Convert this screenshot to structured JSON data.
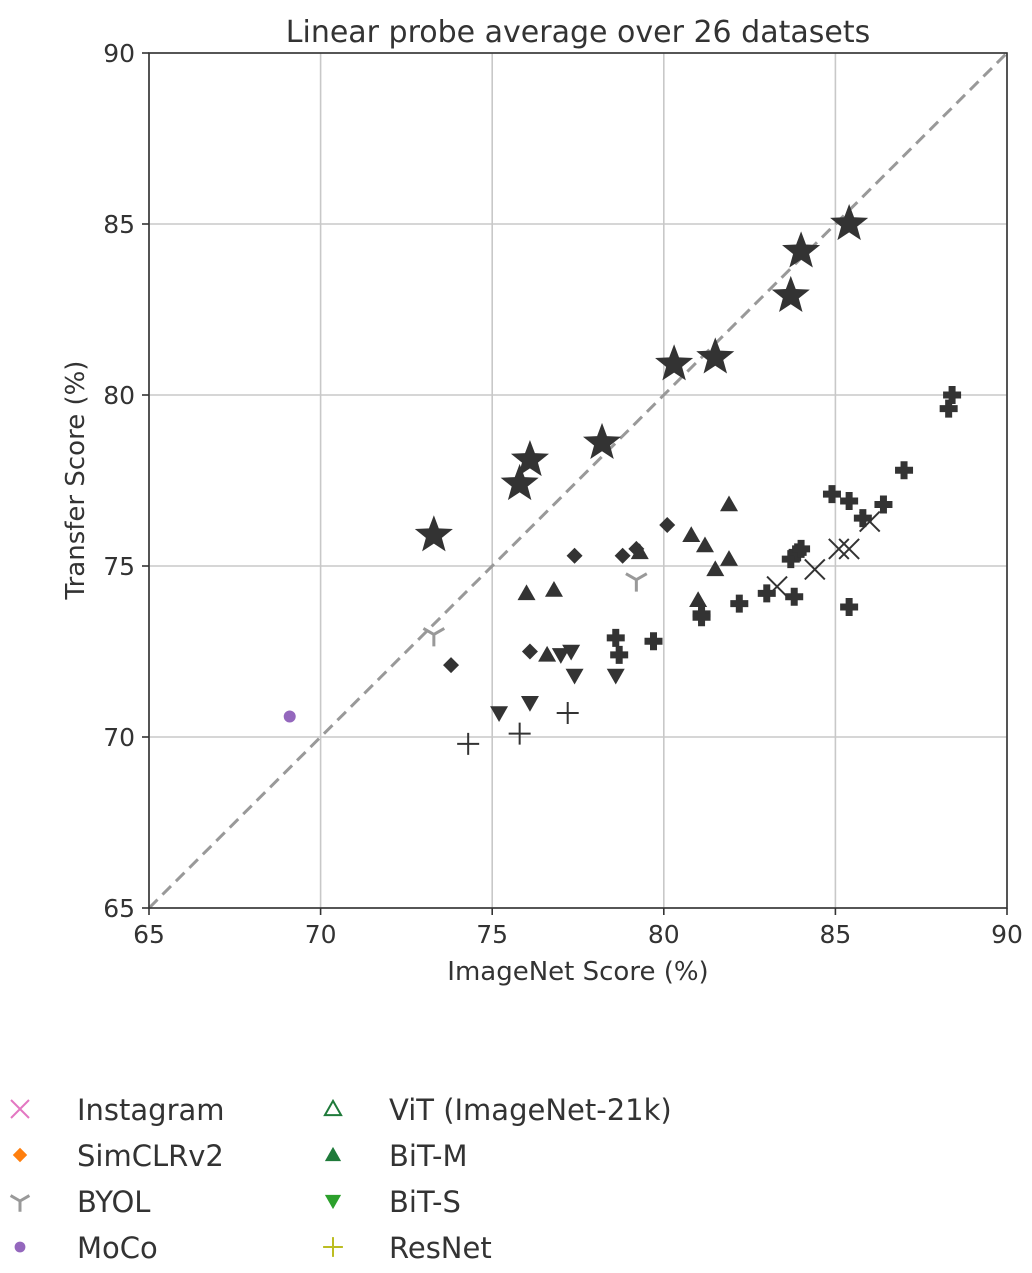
{
  "chart_data": {
    "type": "scatter",
    "title": "Linear probe average over 26 datasets",
    "xlabel": "ImageNet Score (%)",
    "ylabel": "Transfer Score (%)",
    "xlim": [
      65,
      90
    ],
    "ylim": [
      65,
      90
    ],
    "xticks": [
      65,
      70,
      75,
      80,
      85,
      90
    ],
    "yticks": [
      65,
      70,
      75,
      80,
      85,
      90
    ],
    "grid": true,
    "diagonal_reference_line": true,
    "legend_placement": "bottom-left, outside plot",
    "legend_columns": [
      [
        "Instagram",
        "SimCLRv2",
        "BYOL",
        "MoCo"
      ],
      [
        "ViT (ImageNet-21k)",
        "BiT-M",
        "BiT-S",
        "ResNet"
      ]
    ],
    "legend_colors": {
      "Instagram": "#e377c2",
      "SimCLRv2": "#ff7f0e",
      "BYOL": "#999999",
      "MoCo": "#9467bd",
      "ViT (ImageNet-21k)": "#1f7a3a",
      "BiT-M": "#1f7a3a",
      "BiT-S": "#2ca02c",
      "ResNet": "#bcbd22"
    },
    "series": [
      {
        "marker": "star",
        "color": "#333333",
        "points": [
          [
            73.3,
            75.9
          ],
          [
            75.8,
            77.4
          ],
          [
            76.1,
            78.1
          ],
          [
            78.2,
            78.6
          ],
          [
            80.3,
            80.9
          ],
          [
            81.5,
            81.1
          ],
          [
            83.7,
            82.9
          ],
          [
            84.0,
            84.2
          ],
          [
            85.4,
            85.0
          ]
        ]
      },
      {
        "name": "Instagram",
        "marker": "x",
        "color": "#333333",
        "points": [
          [
            83.3,
            74.4
          ],
          [
            84.4,
            74.9
          ],
          [
            85.1,
            75.5
          ],
          [
            85.4,
            75.5
          ],
          [
            86.0,
            76.3
          ]
        ]
      },
      {
        "name": "SimCLRv2",
        "marker": "diamond",
        "color": "#333333",
        "points": [
          [
            73.8,
            72.1
          ],
          [
            76.1,
            72.5
          ],
          [
            77.4,
            75.3
          ],
          [
            78.8,
            75.3
          ],
          [
            79.2,
            75.5
          ],
          [
            80.1,
            76.2
          ]
        ]
      },
      {
        "name": "BYOL",
        "marker": "tri",
        "color": "#999999",
        "points": [
          [
            73.3,
            73.0
          ],
          [
            79.2,
            74.6
          ]
        ]
      },
      {
        "name": "MoCo",
        "marker": "circle",
        "color": "#9467bd",
        "points": [
          [
            69.1,
            70.6
          ]
        ]
      },
      {
        "name": "BiT-M",
        "marker": "triangle-up",
        "color": "#333333",
        "points": [
          [
            76.0,
            74.2
          ],
          [
            76.8,
            74.3
          ],
          [
            76.6,
            72.4
          ],
          [
            80.8,
            75.9
          ],
          [
            81.2,
            75.6
          ],
          [
            81.5,
            74.9
          ],
          [
            81.9,
            75.2
          ],
          [
            81.9,
            76.8
          ],
          [
            81.0,
            74.0
          ],
          [
            79.3,
            75.4
          ]
        ]
      },
      {
        "name": "BiT-S",
        "marker": "triangle-down",
        "color": "#333333",
        "points": [
          [
            75.2,
            70.7
          ],
          [
            76.1,
            71.0
          ],
          [
            77.0,
            72.4
          ],
          [
            77.3,
            72.5
          ],
          [
            77.4,
            71.8
          ],
          [
            78.6,
            71.8
          ]
        ]
      },
      {
        "name": "ResNet",
        "marker": "plus",
        "color": "#333333",
        "points": [
          [
            74.3,
            69.8
          ],
          [
            75.8,
            70.1
          ],
          [
            77.2,
            70.7
          ]
        ]
      },
      {
        "marker": "thick-plus",
        "color": "#333333",
        "points": [
          [
            78.6,
            72.9
          ],
          [
            78.7,
            72.4
          ],
          [
            79.7,
            72.8
          ],
          [
            81.1,
            73.6
          ],
          [
            81.1,
            73.5
          ],
          [
            82.2,
            73.9
          ],
          [
            83.0,
            74.2
          ],
          [
            83.8,
            74.1
          ],
          [
            83.7,
            75.2
          ],
          [
            83.9,
            75.4
          ],
          [
            84.0,
            75.5
          ],
          [
            84.9,
            77.1
          ],
          [
            85.4,
            76.9
          ],
          [
            85.8,
            76.4
          ],
          [
            86.4,
            76.8
          ],
          [
            85.4,
            73.8
          ],
          [
            87.0,
            77.8
          ],
          [
            88.3,
            79.6
          ],
          [
            88.4,
            80.0
          ]
        ]
      }
    ]
  }
}
